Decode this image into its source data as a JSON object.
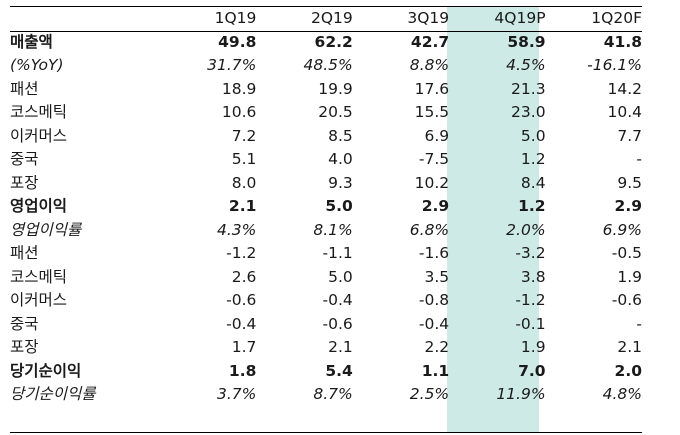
{
  "columns": [
    "1Q19",
    "2Q19",
    "3Q19",
    "4Q19P",
    "1Q20F"
  ],
  "rows": [
    {
      "label": "매출액",
      "style": "bold",
      "values": [
        "49.8",
        "62.2",
        "42.7",
        "58.9",
        "41.8"
      ]
    },
    {
      "label": "(%YoY)",
      "style": "italic",
      "values": [
        "31.7%",
        "48.5%",
        "8.8%",
        "4.5%",
        "-16.1%"
      ]
    },
    {
      "label": "패션",
      "style": "normal",
      "values": [
        "18.9",
        "19.9",
        "17.6",
        "21.3",
        "14.2"
      ]
    },
    {
      "label": "코스메틱",
      "style": "normal",
      "values": [
        "10.6",
        "20.5",
        "15.5",
        "23.0",
        "10.4"
      ]
    },
    {
      "label": "이커머스",
      "style": "normal",
      "values": [
        "7.2",
        "8.5",
        "6.9",
        "5.0",
        "7.7"
      ]
    },
    {
      "label": "중국",
      "style": "normal",
      "values": [
        "5.1",
        "4.0",
        "-7.5",
        "1.2",
        "-"
      ]
    },
    {
      "label": "포장",
      "style": "normal",
      "values": [
        "8.0",
        "9.3",
        "10.2",
        "8.4",
        "9.5"
      ]
    },
    {
      "label": "영업이익",
      "style": "bold",
      "values": [
        "2.1",
        "5.0",
        "2.9",
        "1.2",
        "2.9"
      ]
    },
    {
      "label": "영업이익률",
      "style": "italic",
      "values": [
        "4.3%",
        "8.1%",
        "6.8%",
        "2.0%",
        "6.9%"
      ]
    },
    {
      "label": "패션",
      "style": "normal",
      "values": [
        "-1.2",
        "-1.1",
        "-1.6",
        "-3.2",
        "-0.5"
      ]
    },
    {
      "label": "코스메틱",
      "style": "normal",
      "values": [
        "2.6",
        "5.0",
        "3.5",
        "3.8",
        "1.9"
      ]
    },
    {
      "label": "이커머스",
      "style": "normal",
      "values": [
        "-0.6",
        "-0.4",
        "-0.8",
        "-1.2",
        "-0.6"
      ]
    },
    {
      "label": "중국",
      "style": "normal",
      "values": [
        "-0.4",
        "-0.6",
        "-0.4",
        "-0.1",
        "-"
      ]
    },
    {
      "label": "포장",
      "style": "normal",
      "values": [
        "1.7",
        "2.1",
        "2.2",
        "1.9",
        "2.1"
      ]
    },
    {
      "label": "당기순이익",
      "style": "bold",
      "values": [
        "1.8",
        "5.4",
        "1.1",
        "7.0",
        "2.0"
      ]
    },
    {
      "label": "당기순이익률",
      "style": "italic",
      "values": [
        "3.7%",
        "8.7%",
        "2.5%",
        "11.9%",
        "4.8%"
      ]
    }
  ],
  "colors": {
    "highlight": "#cdeae6",
    "text": "#1a1a1a",
    "rule": "#000000"
  }
}
